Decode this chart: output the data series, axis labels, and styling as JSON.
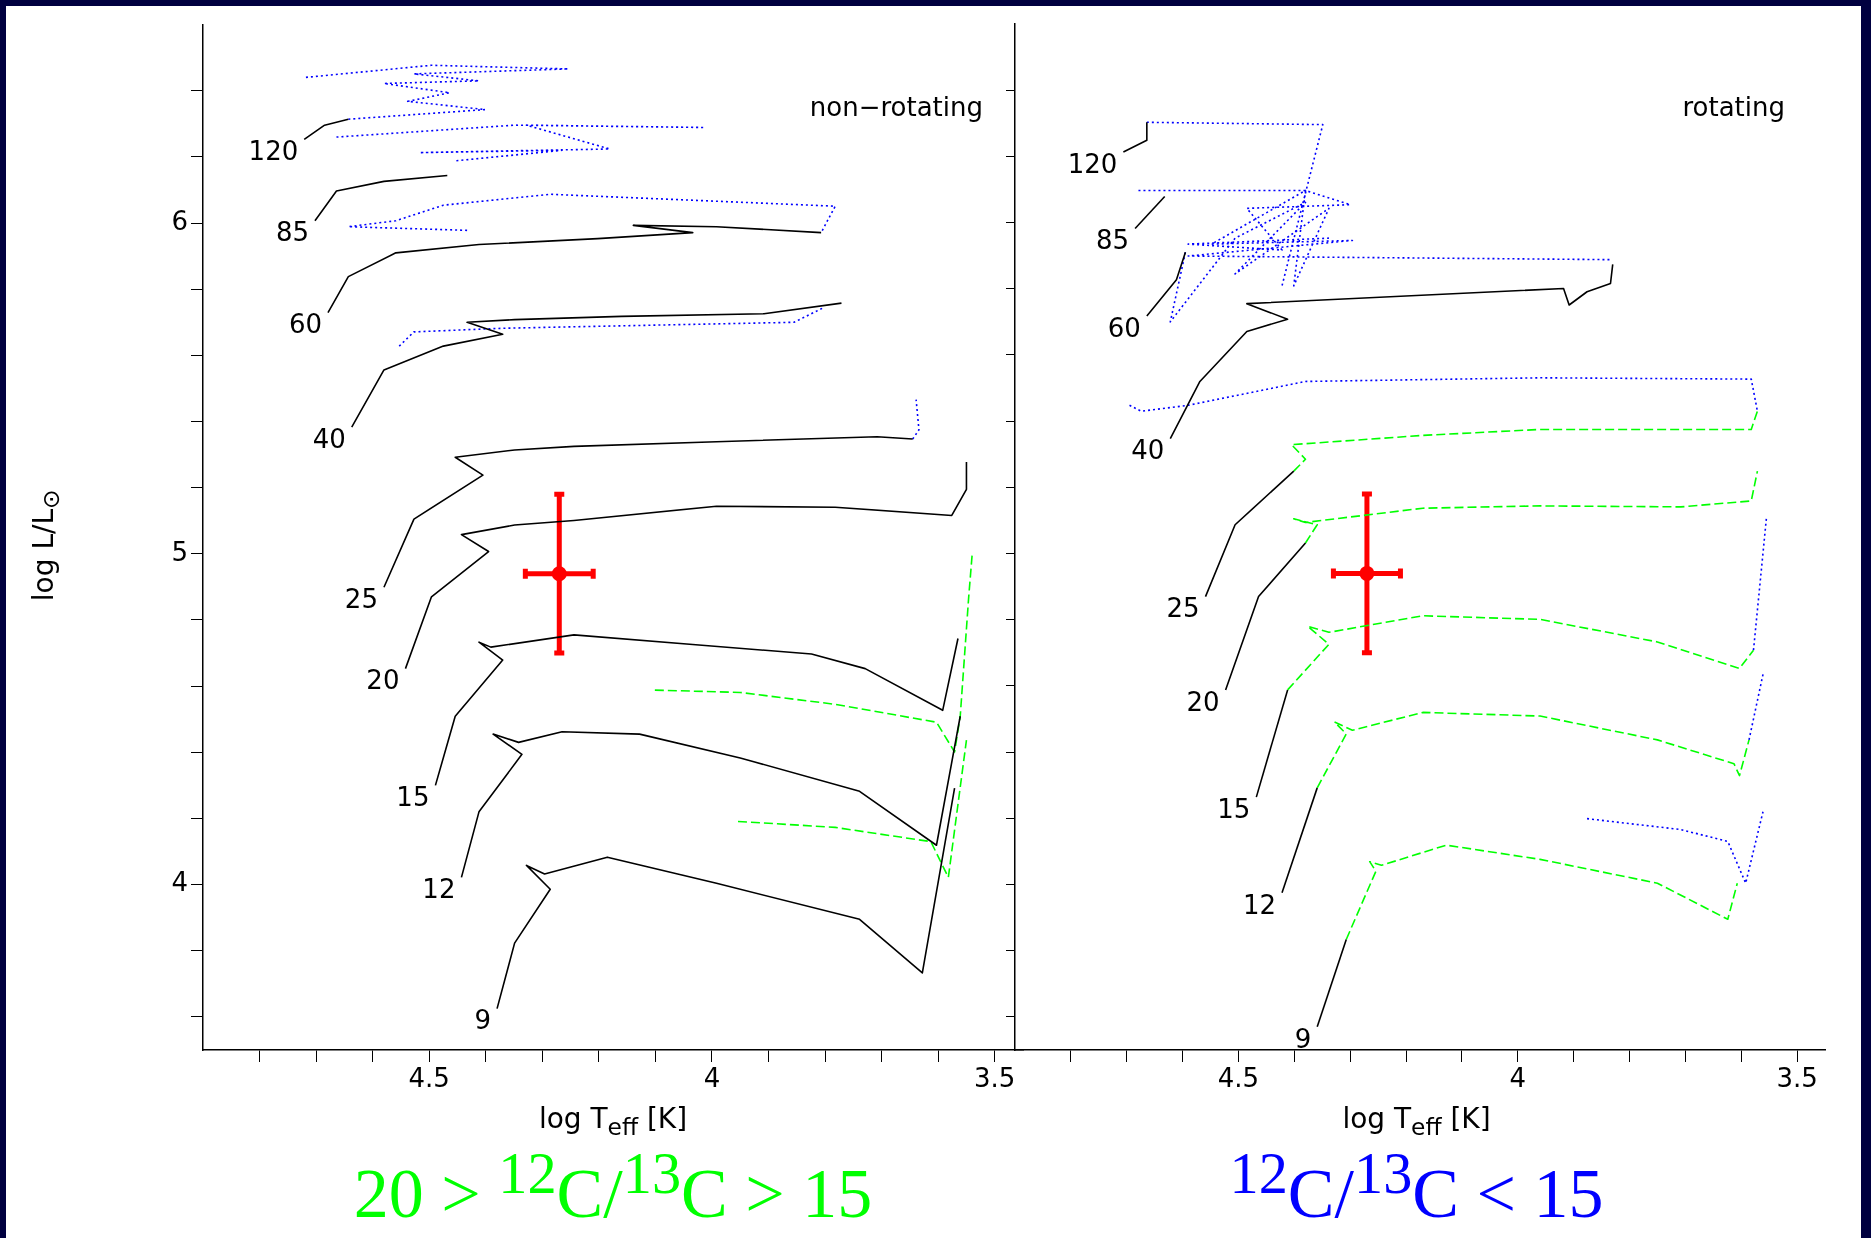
{
  "chart_data": [
    {
      "type": "line",
      "xlabel": "log T$_{eff}$ [K]",
      "ylabel": "log L/L$_{⊙}$",
      "xlim": [
        4.9,
        3.45
      ],
      "ylim": [
        3.5,
        6.6
      ],
      "xticks": [
        {
          "value": 4.8,
          "label": null
        },
        {
          "value": 4.7,
          "label": null
        },
        {
          "value": 4.6,
          "label": null
        },
        {
          "value": 4.5,
          "label": "4.5"
        },
        {
          "value": 4.4,
          "label": null
        },
        {
          "value": 4.3,
          "label": null
        },
        {
          "value": 4.2,
          "label": null
        },
        {
          "value": 4.1,
          "label": null
        },
        4,
        {
          "value": 3.9,
          "label": null
        },
        {
          "value": 3.8,
          "label": null
        },
        {
          "value": 3.7,
          "label": null
        },
        {
          "value": 3.6,
          "label": null
        },
        {
          "value": 3.5,
          "label": "3.5"
        }
      ],
      "yticks": [
        {
          "value": 3.6,
          "label": null
        },
        {
          "value": 3.8,
          "label": null
        },
        4,
        {
          "value": 4.2,
          "label": null
        },
        {
          "value": 4.4,
          "label": null
        },
        {
          "value": 4.6,
          "label": null
        },
        {
          "value": 4.8,
          "label": null
        },
        5,
        {
          "value": 5.2,
          "label": null
        },
        {
          "value": 5.4,
          "label": null
        },
        {
          "value": 5.6,
          "label": null
        },
        {
          "value": 5.8,
          "label": null
        },
        6,
        {
          "value": 6.2,
          "label": null
        },
        {
          "value": 6.4,
          "label": null
        }
      ],
      "annotations": [
        "non−rotating",
        "20 > $^{12}$C/$^{13}$C > 15"
      ],
      "series": [
        {
          "name": "9",
          "color": "#000000",
          "line_style": "solid",
          "x": [
            4.38,
            4.349,
            4.286,
            4.328,
            4.296,
            4.185,
            3.992,
            3.739,
            3.628,
            3.571
          ],
          "values": [
            3.625,
            3.823,
            3.986,
            4.058,
            4.032,
            4.083,
            4.004,
            3.895,
            3.733,
            4.292
          ]
        },
        {
          "name": "12",
          "color": "#000000",
          "line_style": "solid",
          "x": [
            4.443,
            4.412,
            4.336,
            4.387,
            4.342,
            4.265,
            4.128,
            3.95,
            3.739,
            3.603,
            3.561
          ],
          "values": [
            4.022,
            4.22,
            4.394,
            4.455,
            4.43,
            4.462,
            4.455,
            4.383,
            4.282,
            4.119,
            4.509
          ]
        },
        {
          "name": "15",
          "color": "#000000",
          "line_style": "solid",
          "x": [
            4.489,
            4.454,
            4.37,
            4.412,
            4.391,
            4.244,
            4.034,
            3.824,
            3.729,
            3.592,
            3.565
          ],
          "values": [
            4.3,
            4.509,
            4.679,
            4.733,
            4.718,
            4.755,
            4.726,
            4.697,
            4.653,
            4.527,
            4.744
          ]
        },
        {
          "name": "20",
          "color": "#000000",
          "line_style": "solid",
          "x": [
            4.542,
            4.496,
            4.395,
            4.443,
            4.349,
            4.244,
            3.992,
            3.782,
            3.576,
            3.55,
            3.55
          ],
          "values": [
            4.653,
            4.87,
            5.007,
            5.058,
            5.087,
            5.101,
            5.144,
            5.141,
            5.116,
            5.195,
            5.278
          ]
        },
        {
          "name": "25",
          "color": "#000000",
          "line_style": "solid",
          "x": [
            4.58,
            4.527,
            4.405,
            4.454,
            4.349,
            4.244,
            3.992,
            3.708,
            3.645
          ],
          "values": [
            4.899,
            5.105,
            5.238,
            5.292,
            5.314,
            5.325,
            5.339,
            5.354,
            5.347
          ]
        },
        {
          "name": "40",
          "color": "#000000",
          "line_style": "solid",
          "x": [
            4.637,
            4.58,
            4.475,
            4.37,
            4.433,
            4.349,
            4.16,
            3.908,
            3.771
          ],
          "values": [
            5.383,
            5.556,
            5.628,
            5.664,
            5.7,
            5.708,
            5.718,
            5.726,
            5.758
          ]
        },
        {
          "name": "60",
          "color": "#000000",
          "line_style": "solid",
          "x": [
            4.679,
            4.643,
            4.559,
            4.412,
            4.202,
            4.034,
            4.139,
            3.992,
            3.807
          ],
          "values": [
            5.729,
            5.838,
            5.91,
            5.935,
            5.953,
            5.971,
            5.993,
            5.989,
            5.971
          ]
        },
        {
          "name": "85",
          "color": "#000000",
          "line_style": "solid",
          "x": [
            4.702,
            4.664,
            4.58,
            4.468
          ],
          "values": [
            6.007,
            6.097,
            6.126,
            6.144
          ]
        },
        {
          "name": "120",
          "color": "#000000",
          "line_style": "solid",
          "x": [
            4.721,
            4.685,
            4.643
          ],
          "values": [
            6.253,
            6.296,
            6.314
          ]
        },
        {
          "color": "#0000ff",
          "line_style": "dotted",
          "x": [
            4.643,
            4.401,
            4.538,
            4.464,
            4.58,
            4.412,
            4.527,
            4.254,
            4.496,
            4.721
          ],
          "values": [
            6.314,
            6.343,
            6.368,
            6.394,
            6.422,
            6.43,
            6.451,
            6.466,
            6.477,
            6.44
          ]
        },
        {
          "color": "#0000ff",
          "line_style": "dotted",
          "x": [
            4.664,
            4.349,
            4.013,
            4.328,
            4.181,
            4.517,
            4.265,
            4.454
          ],
          "values": [
            6.26,
            6.296,
            6.289,
            6.296,
            6.224,
            6.213,
            6.22,
            6.188
          ]
        },
        {
          "color": "#0000ff",
          "line_style": "dotted",
          "x": [
            4.433,
            4.643,
            4.559,
            4.475,
            4.286,
            3.782,
            3.807
          ],
          "values": [
            5.978,
            5.989,
            6.007,
            6.054,
            6.087,
            6.051,
            5.971
          ]
        },
        {
          "color": "#0000ff",
          "line_style": "dotted",
          "x": [
            4.553,
            4.527,
            4.37,
            3.855,
            3.803
          ],
          "values": [
            5.628,
            5.671,
            5.682,
            5.7,
            5.744
          ]
        },
        {
          "color": "#0000ff",
          "line_style": "dotted",
          "x": [
            3.645,
            3.634,
            3.639
          ],
          "values": [
            5.347,
            5.375,
            5.466
          ]
        },
        {
          "color": "#00ff00",
          "line_style": "dashed",
          "x": [
            4.101,
            3.95,
            3.782,
            3.603,
            3.571,
            3.561,
            3.546,
            3.54
          ],
          "values": [
            4.588,
            4.581,
            4.545,
            4.491,
            4.401,
            4.509,
            4.87,
            4.996
          ]
        },
        {
          "color": "#00ff00",
          "line_style": "dashed",
          "x": [
            3.954,
            3.782,
            3.613,
            3.582,
            3.55
          ],
          "values": [
            4.191,
            4.173,
            4.13,
            4.022,
            4.437
          ]
        },
        {
          "type": "scatter",
          "color": "#ff0000",
          "marker": "circle",
          "x": [
            4.27
          ],
          "values": [
            4.94
          ],
          "errors": [
            0.24
          ],
          "xerrors": [
            0.06
          ]
        }
      ]
    },
    {
      "type": "line",
      "xlabel": "log T$_{eff}$ [K]",
      "xlim": [
        4.9,
        3.45
      ],
      "ylim": [
        3.5,
        6.6
      ],
      "tick_labels": "x",
      "xticks": [
        {
          "value": 4.8,
          "label": null
        },
        {
          "value": 4.7,
          "label": null
        },
        {
          "value": 4.6,
          "label": null
        },
        {
          "value": 4.5,
          "label": "4.5"
        },
        {
          "value": 4.4,
          "label": null
        },
        {
          "value": 4.3,
          "label": null
        },
        {
          "value": 4.2,
          "label": null
        },
        {
          "value": 4.1,
          "label": null
        },
        4,
        {
          "value": 3.9,
          "label": null
        },
        {
          "value": 3.8,
          "label": null
        },
        {
          "value": 3.7,
          "label": null
        },
        {
          "value": 3.6,
          "label": null
        },
        {
          "value": 3.5,
          "label": "3.5"
        }
      ],
      "yticks": [
        {
          "value": 3.6,
          "label": null
        },
        {
          "value": 3.8,
          "label": null
        },
        4,
        {
          "value": 4.2,
          "label": null
        },
        {
          "value": 4.4,
          "label": null
        },
        {
          "value": 4.6,
          "label": null
        },
        {
          "value": 4.8,
          "label": null
        },
        5,
        {
          "value": 5.2,
          "label": null
        },
        {
          "value": 5.4,
          "label": null
        },
        {
          "value": 5.6,
          "label": null
        },
        {
          "value": 5.8,
          "label": null
        },
        6,
        {
          "value": 6.2,
          "label": null
        },
        {
          "value": 6.4,
          "label": null
        }
      ],
      "annotations": [
        "rotating",
        "$^{12}$C/$^{13}$C < 15"
      ],
      "series": [
        {
          "name": "9",
          "color": "#000000",
          "line_style": "solid",
          "x": [
            4.359,
            4.307
          ],
          "values": [
            3.57,
            3.834
          ]
        },
        {
          "color": "#00ff00",
          "line_style": "dashed",
          "x": [
            4.307,
            4.254,
            4.265,
            4.244,
            4.128,
            3.96,
            3.75,
            3.624,
            3.607
          ],
          "values": [
            3.834,
            4.04,
            4.069,
            4.058,
            4.119,
            4.076,
            4.004,
            3.895,
            4.004
          ]
        },
        {
          "color": "#0000ff",
          "line_style": "dotted",
          "x": [
            3.876,
            3.708,
            3.624,
            3.592,
            3.561
          ],
          "values": [
            4.199,
            4.166,
            4.13,
            4.004,
            4.22
          ]
        },
        {
          "name": "12",
          "color": "#000000",
          "line_style": "solid",
          "x": [
            4.422,
            4.359
          ],
          "values": [
            3.975,
            4.292
          ]
        },
        {
          "color": "#00ff00",
          "line_style": "dashed",
          "x": [
            4.359,
            4.307,
            4.328,
            4.296,
            4.17,
            3.96,
            3.75,
            3.613,
            3.603,
            3.586
          ],
          "values": [
            4.292,
            4.455,
            4.491,
            4.466,
            4.52,
            4.509,
            4.437,
            4.365,
            4.329,
            4.437
          ]
        },
        {
          "color": "#0000ff",
          "line_style": "dotted",
          "x": [
            3.586,
            3.561
          ],
          "values": [
            4.437,
            4.635
          ]
        },
        {
          "name": "15",
          "color": "#000000",
          "line_style": "solid",
          "x": [
            4.468,
            4.412
          ],
          "values": [
            4.264,
            4.588
          ]
        },
        {
          "color": "#00ff00",
          "line_style": "dashed",
          "x": [
            4.412,
            4.338,
            4.376,
            4.338,
            4.17,
            3.96,
            3.75,
            3.603,
            3.578
          ],
          "values": [
            4.588,
            4.726,
            4.78,
            4.762,
            4.812,
            4.801,
            4.733,
            4.653,
            4.708
          ]
        },
        {
          "color": "#0000ff",
          "line_style": "dotted",
          "x": [
            3.578,
            3.555
          ],
          "values": [
            4.708,
            5.105
          ]
        },
        {
          "name": "20",
          "color": "#000000",
          "line_style": "solid",
          "x": [
            4.523,
            4.464,
            4.38
          ],
          "values": [
            4.588,
            4.87,
            5.032
          ]
        },
        {
          "color": "#00ff00",
          "line_style": "dashed",
          "x": [
            4.38,
            4.359,
            4.401,
            4.38,
            4.17,
            3.96,
            3.708,
            3.582,
            3.571
          ],
          "values": [
            5.032,
            5.087,
            5.105,
            5.094,
            5.137,
            5.144,
            5.141,
            5.159,
            5.249
          ]
        },
        {
          "name": "25",
          "color": "#000000",
          "line_style": "solid",
          "x": [
            4.559,
            4.506,
            4.401
          ],
          "values": [
            4.87,
            5.087,
            5.249
          ]
        },
        {
          "color": "#00ff00",
          "line_style": "dashed",
          "x": [
            4.401,
            4.38,
            4.405,
            4.17,
            3.96,
            3.582,
            3.571
          ],
          "values": [
            5.249,
            5.285,
            5.329,
            5.357,
            5.375,
            5.375,
            5.43
          ]
        },
        {
          "name": "40",
          "color": "#000000",
          "line_style": "solid",
          "x": [
            4.622,
            4.569,
            4.485,
            4.412,
            4.485,
            3.918,
            3.908,
            3.876,
            3.834,
            3.83
          ],
          "values": [
            5.347,
            5.52,
            5.671,
            5.708,
            5.755,
            5.801,
            5.751,
            5.791,
            5.816,
            5.874
          ]
        },
        {
          "color": "#0000ff",
          "line_style": "dotted",
          "x": [
            4.695,
            4.674,
            4.59,
            4.38,
            3.96,
            3.582,
            3.571
          ],
          "values": [
            5.448,
            5.43,
            5.448,
            5.52,
            5.531,
            5.527,
            5.43
          ]
        },
        {
          "name": "60",
          "color": "#000000",
          "line_style": "solid",
          "x": [
            4.664,
            4.611,
            4.595
          ],
          "values": [
            5.718,
            5.827,
            5.91
          ]
        },
        {
          "color": "#0000ff",
          "line_style": "dotted",
          "x": [
            4.595,
            4.622,
            4.506,
            4.38,
            4.506,
            4.338,
            4.401,
            4.38,
            4.548,
            4.296,
            4.59,
            3.834
          ],
          "values": [
            5.91,
            5.7,
            5.953,
            6.061,
            5.845,
            6.043,
            5.809,
            6.097,
            5.935,
            5.946,
            5.899,
            5.888
          ]
        },
        {
          "name": "85",
          "color": "#000000",
          "line_style": "solid",
          "x": [
            4.685,
            4.632
          ],
          "values": [
            5.982,
            6.079
          ]
        },
        {
          "color": "#0000ff",
          "line_style": "dotted",
          "x": [
            4.679,
            4.38,
            4.3,
            4.485,
            4.422,
            4.59,
            4.338
          ],
          "values": [
            6.097,
            6.097,
            6.054,
            6.043,
            5.917,
            5.935,
            5.953
          ]
        },
        {
          "name": "120",
          "color": "#000000",
          "line_style": "solid",
          "x": [
            4.706,
            4.664,
            4.664
          ],
          "values": [
            6.213,
            6.249,
            6.303
          ]
        },
        {
          "color": "#0000ff",
          "line_style": "dotted",
          "x": [
            4.664,
            4.349,
            4.422
          ],
          "values": [
            6.303,
            6.296,
            5.809
          ]
        },
        {
          "type": "scatter",
          "color": "#ff0000",
          "marker": "circle",
          "x": [
            4.27
          ],
          "values": [
            4.94
          ],
          "errors": [
            0.24
          ],
          "xerrors": [
            0.06
          ]
        }
      ]
    }
  ]
}
